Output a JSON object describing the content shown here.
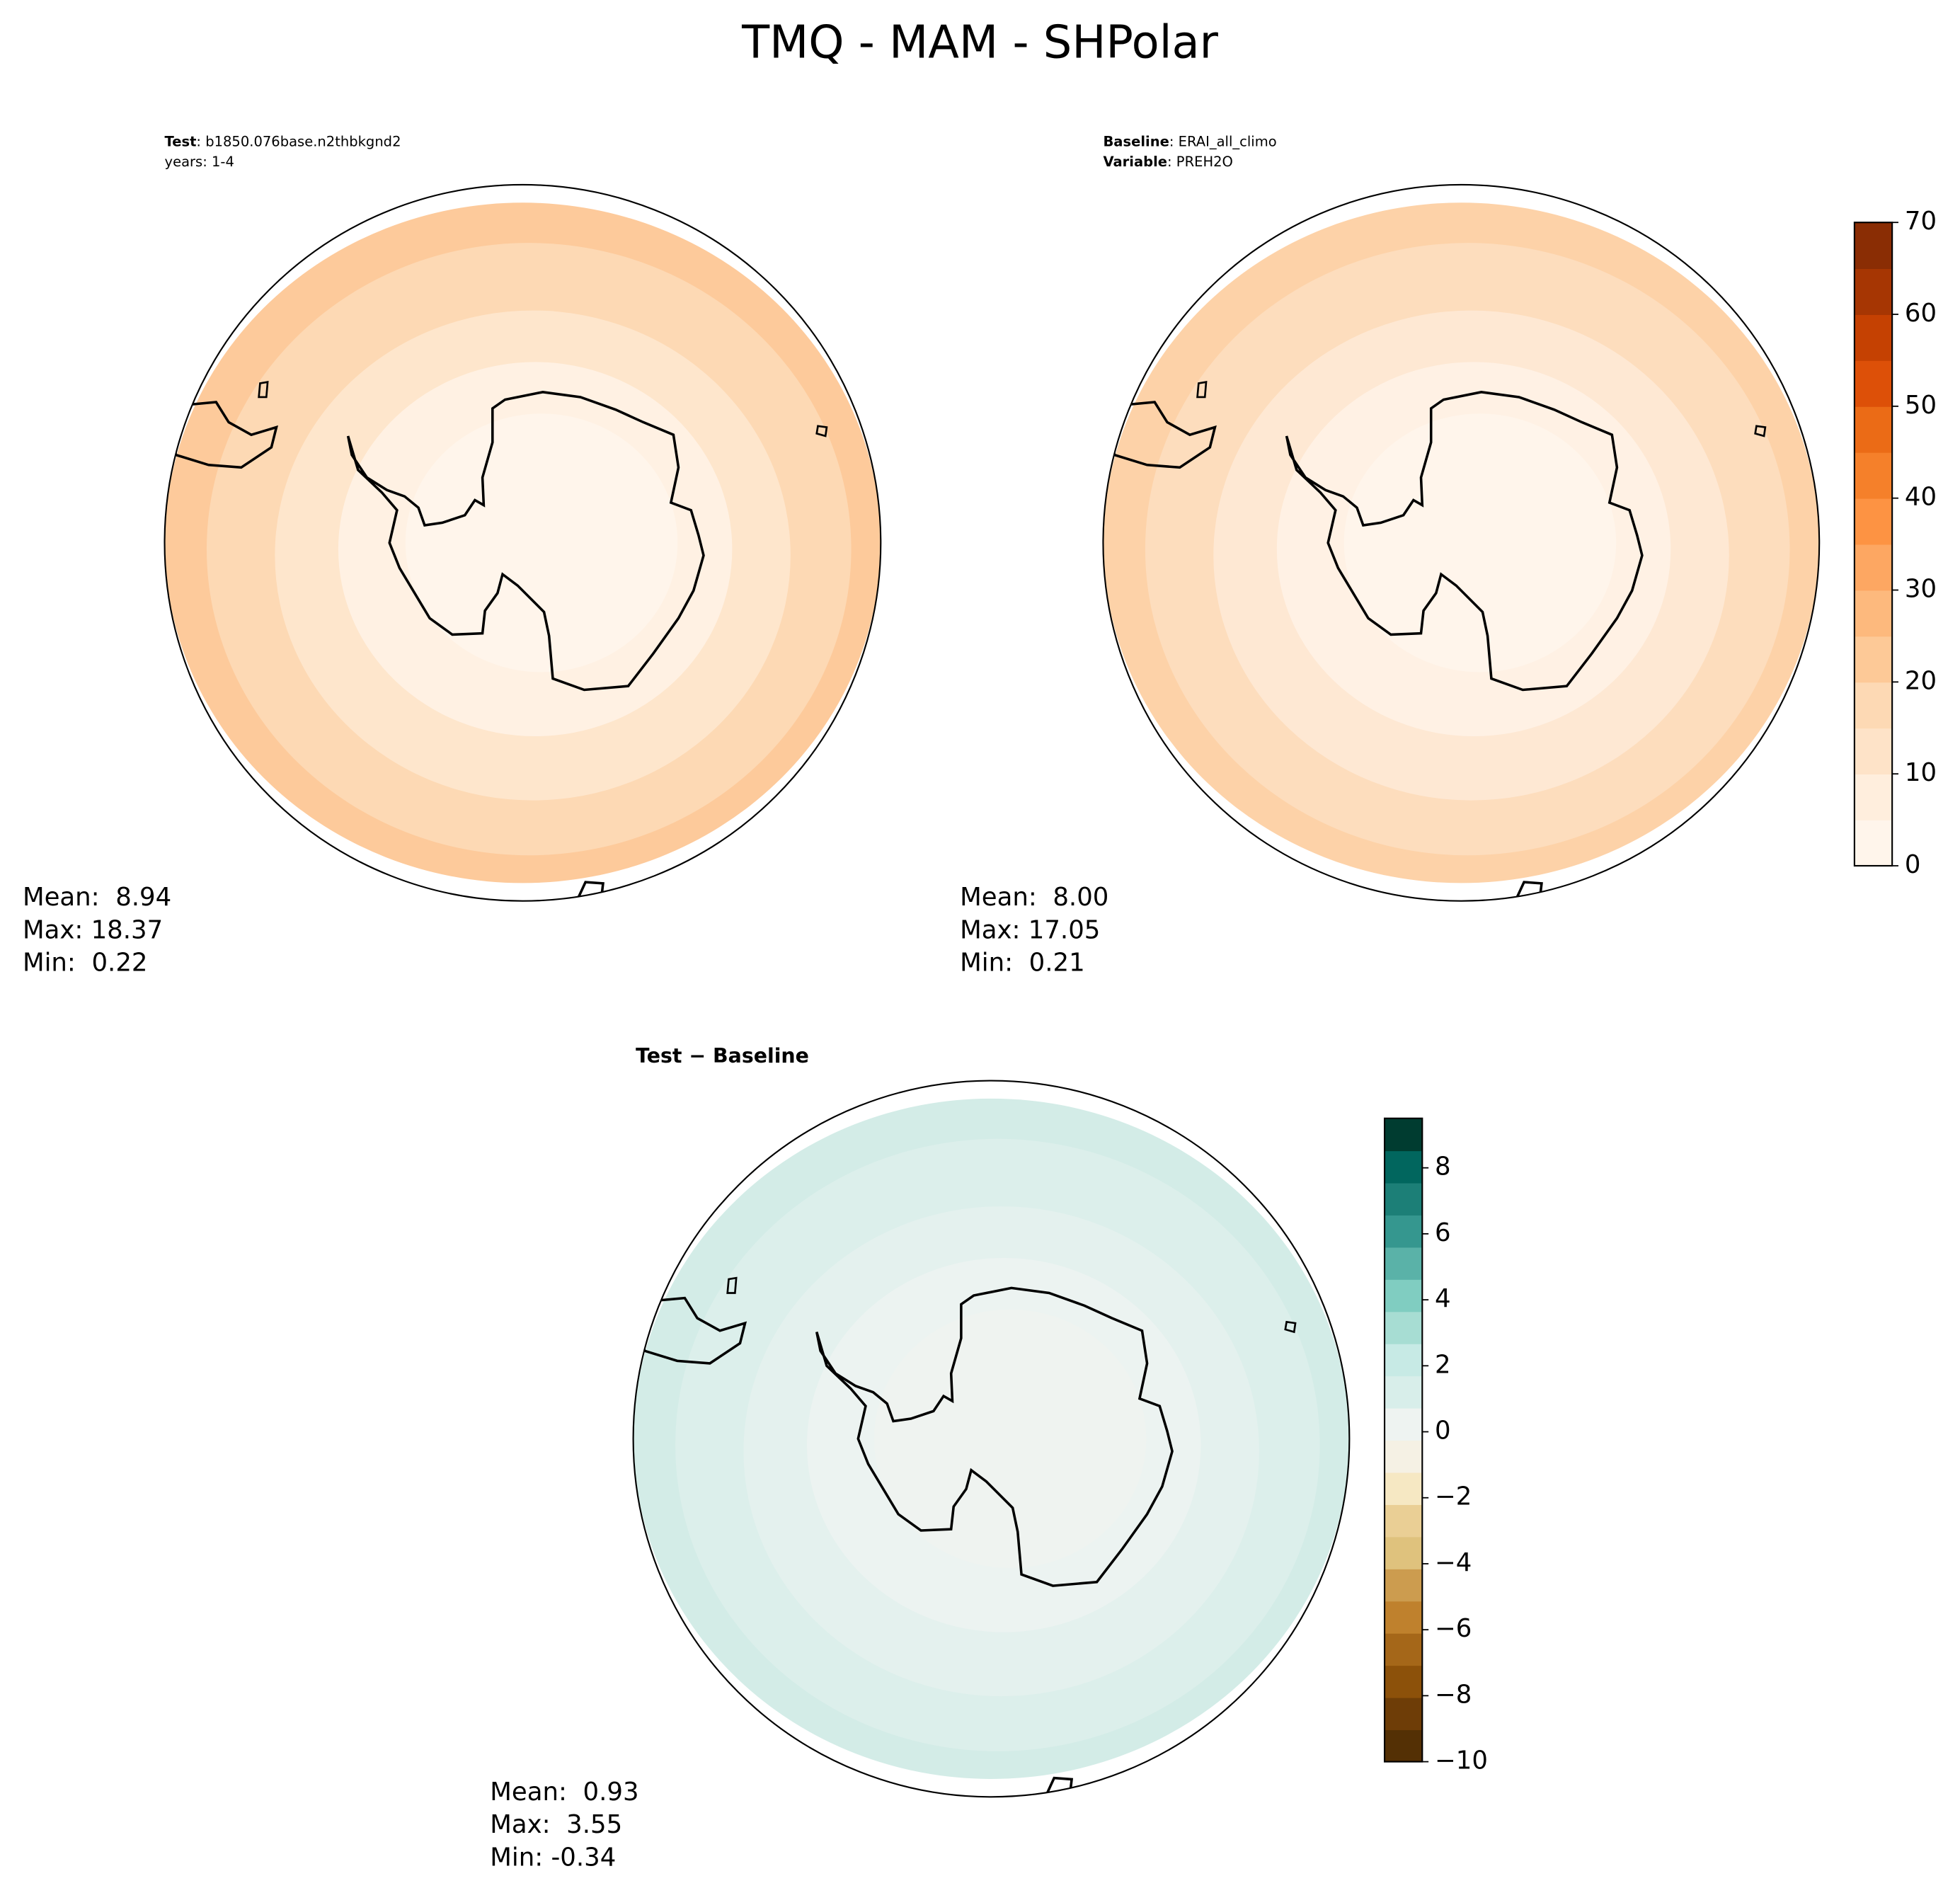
{
  "title": "TMQ - MAM - SHPolar",
  "panels": [
    {
      "header": [
        {
          "bold": "Test",
          "text": ": b1850.076base.n2thbkgnd2"
        },
        {
          "text": "years: 1-4"
        }
      ],
      "stats": [
        "Mean:  8.94",
        "Max: 18.37",
        "Min:  0.22"
      ]
    },
    {
      "header": [
        {
          "bold": "Baseline",
          "text": ": ERAI_all_climo"
        },
        {
          "bold": "Variable",
          "text": ": PREH2O"
        }
      ],
      "stats": [
        "Mean:  8.00",
        "Max: 17.05",
        "Min:  0.21"
      ]
    },
    {
      "header": [
        {
          "bold": "Test − Baseline"
        }
      ],
      "stats": [
        "Mean:  0.93",
        "Max:  3.55",
        "Min: -0.34"
      ]
    }
  ],
  "colorbars": [
    {
      "lim": [
        0,
        70
      ],
      "ticks": [
        0,
        10,
        20,
        30,
        40,
        50,
        60,
        70
      ],
      "colors": [
        "#fff5eb",
        "#ffeedd",
        "#fee3c8",
        "#fdd9b4",
        "#fdc997",
        "#fdb97d",
        "#fda762",
        "#fd9343",
        "#f5802a",
        "#eb6b16",
        "#dd5008",
        "#c54102",
        "#a63603",
        "#8a2d04"
      ]
    },
    {
      "lim": [
        -10,
        9.5
      ],
      "ticks": [
        {
          "value": -10,
          "label": "−10"
        },
        {
          "value": -8,
          "label": "−8"
        },
        {
          "value": -6,
          "label": "−6"
        },
        {
          "value": -4,
          "label": "−4"
        },
        {
          "value": -2,
          "label": "−2"
        },
        0,
        2,
        4,
        6,
        8
      ],
      "colors": [
        "#543005",
        "#6e3d07",
        "#8c510a",
        "#a56719",
        "#bf812d",
        "#cc9c4f",
        "#dfc27d",
        "#eacf95",
        "#f6e8c3",
        "#f5f1e4",
        "#eef3f1",
        "#d8eeea",
        "#c7eae5",
        "#a7ddd3",
        "#80cdc1",
        "#5ab2a8",
        "#35978f",
        "#1c7f77",
        "#01665e",
        "#003c30"
      ]
    }
  ]
}
